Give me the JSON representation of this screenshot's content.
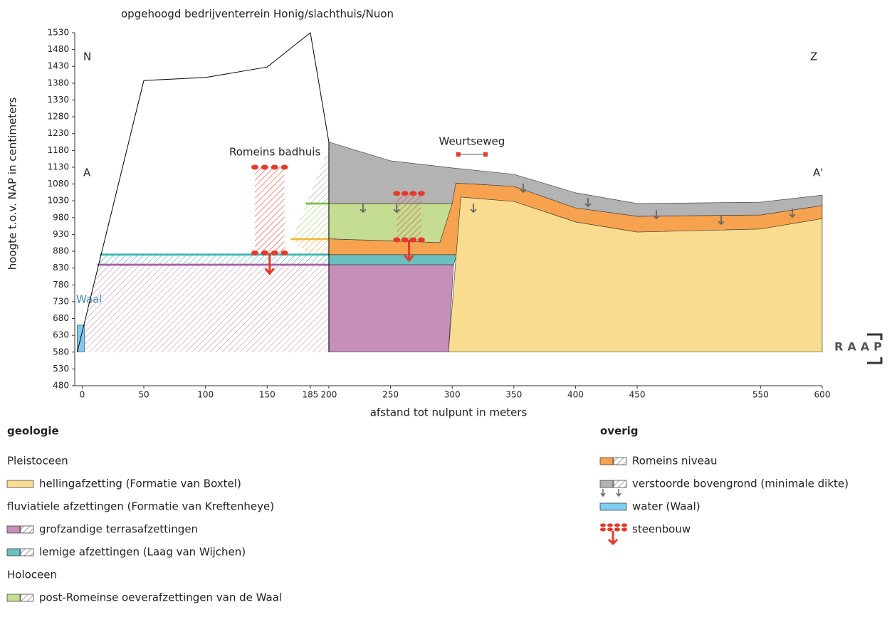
{
  "chart_data": {
    "type": "cross-section",
    "title": "opgehoogd bedrijventerrein Honig/slachthuis/Nuon",
    "y_label": "hoogte t.o.v. NAP in centimeters",
    "x_label": "afstand tot nulpunt in meters",
    "annotations": {
      "north": "N",
      "south": "Z",
      "start": "A",
      "end": "A'",
      "bath": "Romeins badhuis",
      "water": "Waal",
      "logo": "RAAP"
    },
    "road": {
      "label": "Weurtseweg",
      "x": [
        305,
        327
      ],
      "y": 1168,
      "color": "#e53a2a"
    },
    "xlim": [
      -6,
      600
    ],
    "ylim": [
      480,
      1530
    ],
    "xticks": [
      0,
      50,
      100,
      150,
      185,
      200,
      250,
      300,
      350,
      400,
      450,
      550,
      600
    ],
    "yticks": [
      480,
      530,
      580,
      630,
      680,
      730,
      780,
      830,
      880,
      930,
      980,
      1030,
      1080,
      1130,
      1180,
      1230,
      1280,
      1330,
      1380,
      1430,
      1480,
      1530
    ],
    "layers": [
      {
        "color": "#7ecdf0",
        "hatched": false,
        "x": [
          -4,
          -4,
          2,
          2
        ],
        "y": [
          580,
          660,
          660,
          580
        ]
      },
      {
        "color": "#c68fb9",
        "hatched": true,
        "x": [
          -4,
          13,
          200,
          200
        ],
        "y": [
          580,
          840,
          840,
          580
        ]
      },
      {
        "color": "#3bb3b0",
        "hatched": true,
        "x": [
          13,
          15,
          200,
          200
        ],
        "y": [
          840,
          870,
          870,
          840
        ]
      },
      {
        "color": "#f6a24e",
        "hatched": true,
        "x": [
          170,
          200,
          200,
          183
        ],
        "y": [
          916,
          916,
          870,
          870
        ]
      },
      {
        "color": "#9fcf6a",
        "hatched": true,
        "x": [
          182,
          200,
          200,
          170
        ],
        "y": [
          1022,
          1022,
          916,
          916
        ]
      },
      {
        "color": "#a0a0a0",
        "hatched": true,
        "x": [
          200,
          200,
          182
        ],
        "y": [
          1190,
          1022,
          1022
        ]
      },
      {
        "color": "#c68fb9",
        "hatched": false,
        "x": [
          200,
          301,
          297,
          200
        ],
        "y": [
          840,
          840,
          580,
          580
        ]
      },
      {
        "color": "#6bbfbf",
        "hatched": false,
        "x": [
          200,
          304,
          301,
          200
        ],
        "y": [
          870,
          870,
          840,
          840
        ]
      },
      {
        "color": "#f6a24e",
        "hatched": false,
        "x": [
          200,
          290,
          303,
          350,
          400,
          450,
          550,
          600,
          600,
          550,
          450,
          400,
          350,
          307,
          304,
          200
        ],
        "y": [
          917,
          906,
          1083,
          1073,
          1009,
          984,
          988,
          1016,
          977,
          946,
          937,
          967,
          1028,
          1041,
          870,
          870
        ]
      },
      {
        "color": "#c5dd93",
        "hatched": false,
        "x": [
          200,
          300,
          290,
          200
        ],
        "y": [
          1022,
          1022,
          906,
          917
        ]
      },
      {
        "color": "#b3b3b3",
        "hatched": false,
        "x": [
          200,
          250,
          300,
          350,
          400,
          450,
          550,
          600,
          600,
          550,
          450,
          400,
          350,
          303,
          300,
          200
        ],
        "y": [
          1205,
          1149,
          1128,
          1109,
          1054,
          1022,
          1026,
          1047,
          1016,
          988,
          984,
          1009,
          1073,
          1083,
          1022,
          1022
        ]
      },
      {
        "color": "#f9dc8f",
        "hatched": false,
        "x": [
          297,
          307,
          350,
          400,
          450,
          550,
          600,
          600
        ],
        "y": [
          580,
          1041,
          1028,
          967,
          937,
          946,
          977,
          580
        ]
      }
    ],
    "levels": [
      {
        "color": "#3bb3b0",
        "x": [
          15,
          200
        ],
        "y": [
          870,
          870
        ]
      },
      {
        "color": "#a95ba6",
        "x": [
          13,
          200
        ],
        "y": [
          840,
          840
        ]
      },
      {
        "color": "#7dbb4a",
        "x": [
          182,
          200
        ],
        "y": [
          1022,
          1022
        ]
      },
      {
        "color": "#f5b634",
        "x": [
          170,
          200
        ],
        "y": [
          916,
          916
        ]
      }
    ],
    "profile": {
      "color": "#000000",
      "x": [
        -4,
        50,
        100,
        150,
        185,
        200,
        200
      ],
      "y": [
        580,
        1388,
        1397,
        1428,
        1530,
        1205,
        580
      ]
    },
    "steenbouw": [
      {
        "color": "#e53a2a",
        "x": [
          140,
          164
        ],
        "y": [
          1130,
          875
        ]
      },
      {
        "color": "#e53a2a",
        "x": [
          255,
          275
        ],
        "y": [
          1052,
          914
        ]
      }
    ],
    "legend": [
      {
        "title": "geologie",
        "sections": [
          {
            "heading": "Pleistoceen",
            "items": [
              {
                "label": "hellingafzetting (Formatie van Boxtel)",
                "color": "#f9dc8f",
                "hatched": false
              }
            ]
          },
          {
            "heading": "fluviatiele afzettingen (Formatie van Kreftenheye)",
            "items": [
              {
                "label": "grofzandige terrasafzettingen",
                "color": "#c68fb9",
                "hatched": true
              },
              {
                "label": "lemige afzettingen (Laag van Wijchen)",
                "color": "#6bbfbf",
                "hatched": true
              }
            ]
          },
          {
            "heading": "Holoceen",
            "items": [
              {
                "label": "post-Romeinse oeverafzettingen van de Waal",
                "color": "#c5dd93",
                "hatched": true
              }
            ]
          }
        ]
      },
      {
        "title": "overig",
        "sections": [
          {
            "items": [
              {
                "label": "Romeins niveau",
                "color": "#f6a24e",
                "hatched": true
              },
              {
                "label": "verstoorde bovengrond (minimale dikte)",
                "color": "#b3b3b3",
                "hatched": true
              },
              {
                "label": "water (Waal)",
                "color": "#7ecdf0",
                "hatched": false
              },
              {
                "label": "steenbouw",
                "color": "#e53a2a",
                "hatched": false
              }
            ]
          }
        ]
      }
    ]
  }
}
